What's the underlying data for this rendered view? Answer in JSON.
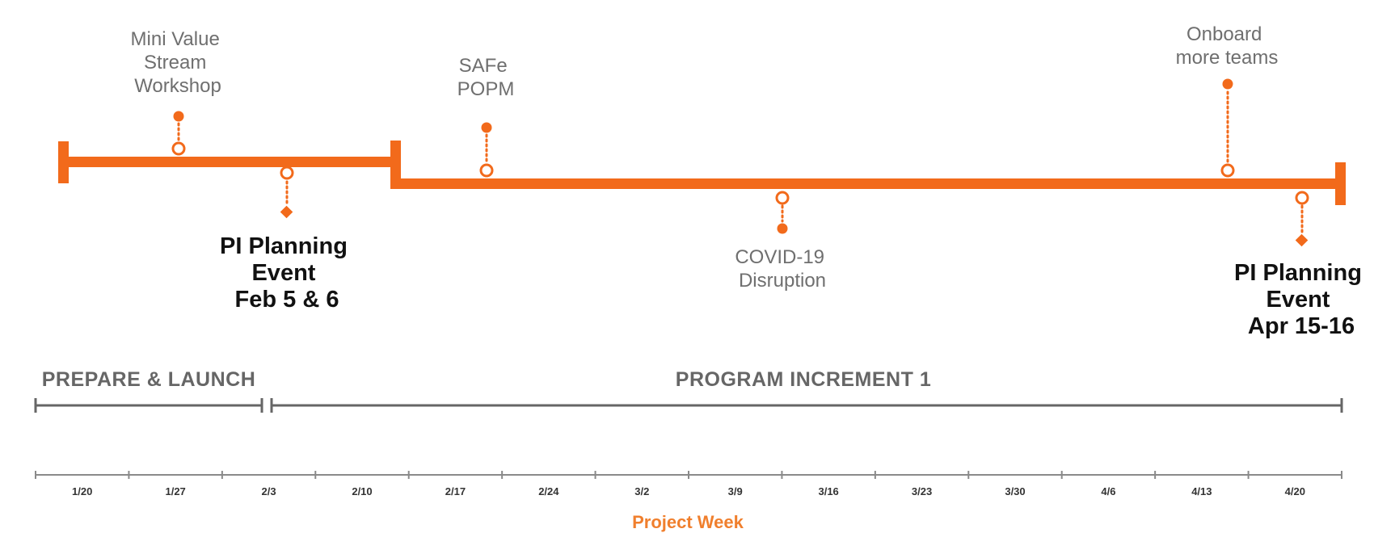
{
  "colors": {
    "accent": "#f26a1b",
    "accent_light": "#f07f2d",
    "text_gray": "#6f6f6f",
    "text_dark": "#111111",
    "axis_gray": "#666666"
  },
  "phases": {
    "prepare": "PREPARE & LAUNCH",
    "increment": "PROGRAM INCREMENT 1"
  },
  "milestones": {
    "mini_value_stream": [
      "Mini Value",
      "Stream",
      "Workshop"
    ],
    "pi_planning_feb": [
      "PI Planning",
      "Event",
      "Feb 5 & 6"
    ],
    "safe_popm": [
      "SAFe",
      "POPM"
    ],
    "covid": [
      "COVID-19",
      "Disruption"
    ],
    "onboard": [
      "Onboard",
      "more teams"
    ],
    "pi_planning_apr": [
      "PI Planning",
      "Event",
      "Apr 15-16"
    ]
  },
  "axis": {
    "title": "Project Week",
    "weeks": [
      "1/20",
      "1/27",
      "2/3",
      "2/10",
      "2/17",
      "2/24",
      "3/2",
      "3/9",
      "3/16",
      "3/23",
      "3/30",
      "4/6",
      "4/13",
      "4/20"
    ]
  }
}
